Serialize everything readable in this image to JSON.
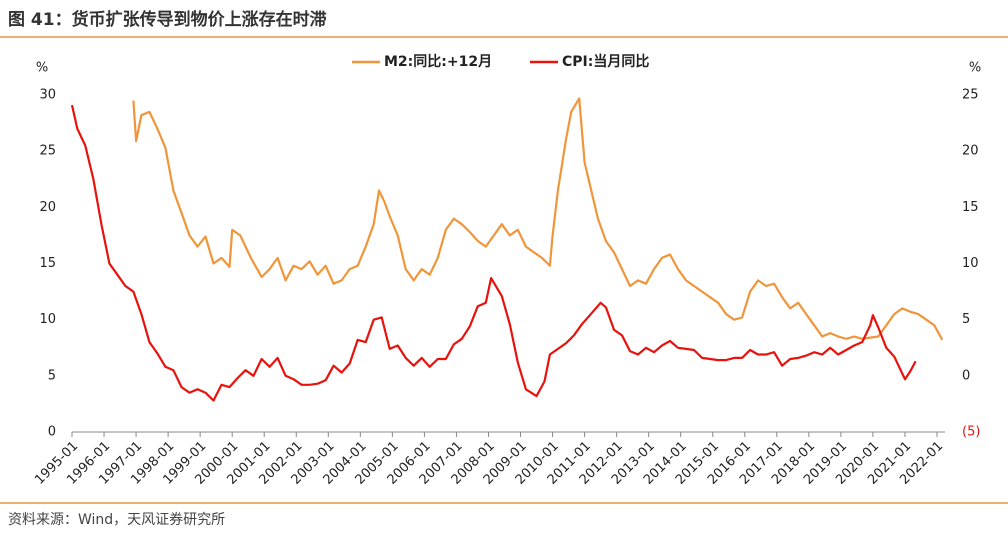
{
  "chart_data": {
    "type": "line",
    "title": "图 41：货币扩张传导到物价上涨存在时滞",
    "source": "资料来源：Wind，天风证券研究所",
    "yunit": "%",
    "y2unit": "%",
    "xlim": [
      "1995-01",
      "2022-04"
    ],
    "xticks": [
      "1995-01",
      "1996-01",
      "1997-01",
      "1998-01",
      "1999-01",
      "2000-01",
      "2001-01",
      "2002-01",
      "2003-01",
      "2004-01",
      "2005-01",
      "2006-01",
      "2007-01",
      "2008-01",
      "2009-01",
      "2010-01",
      "2011-01",
      "2012-01",
      "2013-01",
      "2014-01",
      "2015-01",
      "2016-01",
      "2017-01",
      "2018-01",
      "2019-01",
      "2020-01",
      "2021-01",
      "2022-01"
    ],
    "ylim": [
      0,
      30
    ],
    "yticks": [
      0,
      5,
      10,
      15,
      20,
      25,
      30
    ],
    "y2lim": [
      -5,
      25
    ],
    "y2ticks": [
      {
        "value": -5,
        "label": "(5)"
      },
      0,
      5,
      10,
      15,
      20,
      25
    ],
    "legend": "top",
    "series": [
      {
        "name": "M2:同比:+12月",
        "color": "#f0953a",
        "axis": "y",
        "x": [
          "1996-12",
          "1997-01",
          "1997-03",
          "1997-06",
          "1997-09",
          "1997-12",
          "1998-03",
          "1998-06",
          "1998-09",
          "1998-12",
          "1999-03",
          "1999-06",
          "1999-09",
          "1999-12",
          "2000-01",
          "2000-04",
          "2000-08",
          "2000-12",
          "2001-03",
          "2001-06",
          "2001-09",
          "2001-12",
          "2002-03",
          "2002-06",
          "2002-09",
          "2002-12",
          "2003-03",
          "2003-06",
          "2003-09",
          "2003-12",
          "2004-03",
          "2004-06",
          "2004-08",
          "2004-10",
          "2004-12",
          "2005-03",
          "2005-06",
          "2005-09",
          "2005-12",
          "2006-03",
          "2006-06",
          "2006-09",
          "2006-12",
          "2007-03",
          "2007-06",
          "2007-09",
          "2007-12",
          "2008-03",
          "2008-06",
          "2008-09",
          "2008-12",
          "2009-03",
          "2009-06",
          "2009-09",
          "2009-12",
          "2010-01",
          "2010-03",
          "2010-06",
          "2010-08",
          "2010-11",
          "2011-01",
          "2011-03",
          "2011-06",
          "2011-09",
          "2011-12",
          "2012-03",
          "2012-06",
          "2012-09",
          "2012-12",
          "2013-03",
          "2013-06",
          "2013-09",
          "2013-12",
          "2014-03",
          "2014-06",
          "2014-09",
          "2014-12",
          "2015-03",
          "2015-06",
          "2015-09",
          "2015-12",
          "2016-03",
          "2016-06",
          "2016-09",
          "2016-12",
          "2017-03",
          "2017-06",
          "2017-09",
          "2017-12",
          "2018-03",
          "2018-06",
          "2018-09",
          "2018-12",
          "2019-03",
          "2019-06",
          "2019-09",
          "2019-12",
          "2020-03",
          "2020-06",
          "2020-09",
          "2020-12",
          "2021-03",
          "2021-06",
          "2021-09",
          "2021-12",
          "2022-03"
        ],
        "values": [
          29.5,
          25.9,
          28.2,
          28.5,
          27.0,
          25.3,
          21.5,
          19.5,
          17.5,
          16.5,
          17.4,
          15.0,
          15.5,
          14.7,
          18.0,
          17.5,
          15.5,
          13.8,
          14.5,
          15.5,
          13.5,
          14.8,
          14.5,
          15.2,
          14.0,
          14.8,
          13.2,
          13.5,
          14.5,
          14.8,
          16.5,
          18.5,
          21.5,
          20.5,
          19.2,
          17.5,
          14.5,
          13.5,
          14.5,
          14.0,
          15.5,
          18.0,
          19.0,
          18.5,
          17.8,
          17.0,
          16.5,
          17.5,
          18.5,
          17.5,
          18.0,
          16.5,
          16.0,
          15.5,
          14.8,
          17.5,
          21.5,
          26.0,
          28.5,
          29.7,
          24.0,
          22.0,
          19.0,
          17.0,
          16.0,
          14.5,
          13.0,
          13.5,
          13.2,
          14.5,
          15.5,
          15.8,
          14.5,
          13.5,
          13.0,
          12.5,
          12.0,
          11.5,
          10.5,
          10.0,
          10.2,
          12.5,
          13.5,
          13.0,
          13.2,
          12.0,
          11.0,
          11.5,
          10.5,
          9.5,
          8.5,
          8.8,
          8.5,
          8.3,
          8.5,
          8.3,
          8.4,
          8.5,
          9.5,
          10.5,
          11.0,
          10.7,
          10.5,
          10.0,
          9.5,
          8.2
        ]
      },
      {
        "name": "CPI:当月同比",
        "color": "#e8120c",
        "axis": "y2",
        "x": [
          "1995-01",
          "1995-03",
          "1995-06",
          "1995-09",
          "1995-12",
          "1996-03",
          "1996-06",
          "1996-09",
          "1996-12",
          "1997-03",
          "1997-06",
          "1997-09",
          "1997-12",
          "1998-03",
          "1998-06",
          "1998-09",
          "1998-12",
          "1999-03",
          "1999-06",
          "1999-09",
          "1999-12",
          "2000-03",
          "2000-06",
          "2000-09",
          "2000-12",
          "2001-03",
          "2001-06",
          "2001-09",
          "2001-12",
          "2002-03",
          "2002-06",
          "2002-09",
          "2002-12",
          "2003-03",
          "2003-06",
          "2003-09",
          "2003-12",
          "2004-03",
          "2004-06",
          "2004-09",
          "2004-12",
          "2005-03",
          "2005-06",
          "2005-09",
          "2005-12",
          "2006-03",
          "2006-06",
          "2006-09",
          "2006-12",
          "2007-03",
          "2007-06",
          "2007-09",
          "2007-12",
          "2008-02",
          "2008-06",
          "2008-09",
          "2008-12",
          "2009-03",
          "2009-07",
          "2009-10",
          "2009-12",
          "2010-03",
          "2010-06",
          "2010-09",
          "2010-12",
          "2011-03",
          "2011-07",
          "2011-09",
          "2011-12",
          "2012-03",
          "2012-06",
          "2012-09",
          "2012-12",
          "2013-03",
          "2013-06",
          "2013-09",
          "2013-12",
          "2014-03",
          "2014-06",
          "2014-09",
          "2014-12",
          "2015-03",
          "2015-06",
          "2015-09",
          "2015-12",
          "2016-03",
          "2016-06",
          "2016-09",
          "2016-12",
          "2017-03",
          "2017-06",
          "2017-09",
          "2017-12",
          "2018-03",
          "2018-06",
          "2018-09",
          "2018-12",
          "2019-03",
          "2019-06",
          "2019-09",
          "2019-12",
          "2020-01",
          "2020-03",
          "2020-06",
          "2020-09",
          "2020-12",
          "2021-01",
          "2021-03",
          "2021-05"
        ],
        "values": [
          24.1,
          22.0,
          20.5,
          17.5,
          13.5,
          10.0,
          9.0,
          8.0,
          7.5,
          5.5,
          3.0,
          2.0,
          0.8,
          0.5,
          -1.0,
          -1.5,
          -1.2,
          -1.5,
          -2.2,
          -0.8,
          -1.0,
          -0.2,
          0.5,
          0.0,
          1.5,
          0.8,
          1.6,
          0.0,
          -0.3,
          -0.8,
          -0.8,
          -0.7,
          -0.4,
          0.9,
          0.3,
          1.1,
          3.2,
          3.0,
          5.0,
          5.2,
          2.4,
          2.7,
          1.6,
          0.9,
          1.6,
          0.8,
          1.5,
          1.5,
          2.8,
          3.3,
          4.4,
          6.2,
          6.5,
          8.7,
          7.1,
          4.6,
          1.2,
          -1.2,
          -1.8,
          -0.5,
          1.9,
          2.4,
          2.9,
          3.6,
          4.6,
          5.4,
          6.5,
          6.1,
          4.1,
          3.6,
          2.2,
          1.9,
          2.5,
          2.1,
          2.7,
          3.1,
          2.5,
          2.4,
          2.3,
          1.6,
          1.5,
          1.4,
          1.4,
          1.6,
          1.6,
          2.3,
          1.9,
          1.9,
          2.1,
          0.9,
          1.5,
          1.6,
          1.8,
          2.1,
          1.9,
          2.5,
          1.9,
          2.3,
          2.7,
          3.0,
          4.5,
          5.4,
          4.3,
          2.5,
          1.7,
          0.2,
          -0.3,
          0.4,
          1.3
        ]
      }
    ]
  }
}
